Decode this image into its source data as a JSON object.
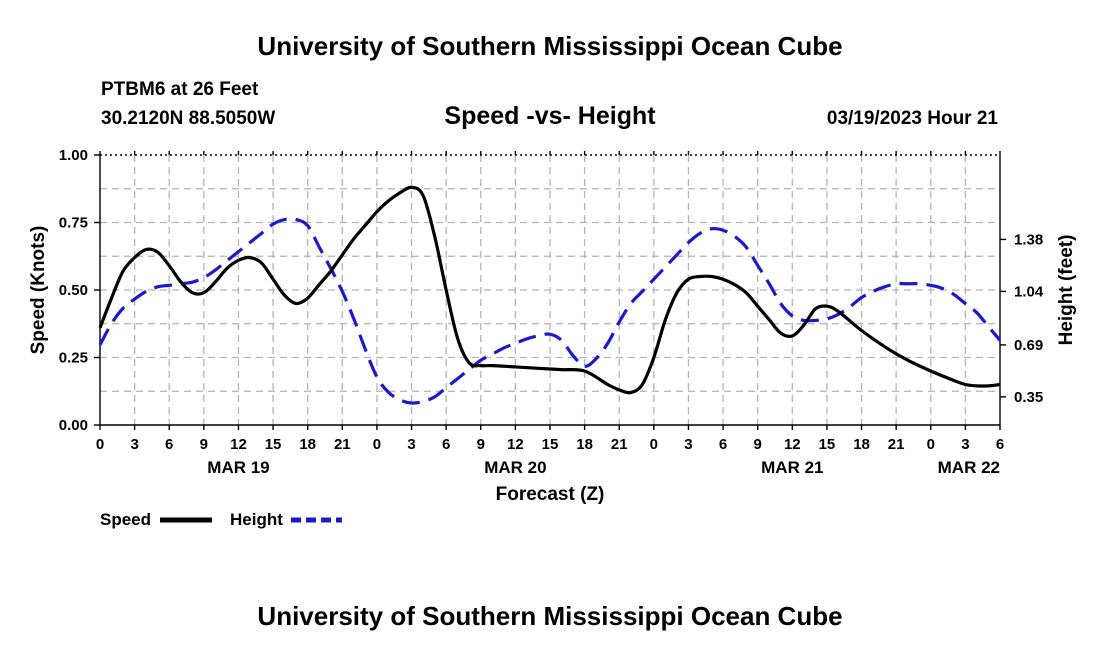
{
  "header": {
    "title": "University of Southern Mississippi Ocean Cube",
    "station": "PTBM6 at 26 Feet",
    "coords": "30.2120N  88.5050W",
    "chart_title": "Speed -vs- Height",
    "timestamp": "03/19/2023 Hour 21"
  },
  "footer": {
    "title": "University of Southern Mississippi Ocean Cube"
  },
  "colors": {
    "speed": "#000000",
    "height": "#1a1acc",
    "grid": "#b3b3b3"
  },
  "chart_data": {
    "type": "line",
    "title": "Speed -vs- Height",
    "xlabel": "Forecast (Z)",
    "ylabel": "Speed (Knots)",
    "y2label": "Height (feet)",
    "x_unit": "hours since MAR 19 00Z",
    "xlim": [
      0,
      78
    ],
    "ylim": [
      0,
      1
    ],
    "y2lim": [
      0.1661,
      1.9323
    ],
    "x_ticks": [
      0,
      3,
      6,
      9,
      12,
      15,
      18,
      21,
      24,
      27,
      30,
      33,
      36,
      39,
      42,
      45,
      48,
      51,
      54,
      57,
      60,
      63,
      66,
      69,
      72,
      75,
      78
    ],
    "x_tick_labels": [
      "0",
      "3",
      "6",
      "9",
      "12",
      "15",
      "18",
      "21",
      "0",
      "3",
      "6",
      "9",
      "12",
      "15",
      "18",
      "21",
      "0",
      "3",
      "6",
      "9",
      "12",
      "15",
      "18",
      "21",
      "0",
      "3",
      "6"
    ],
    "date_labels": [
      {
        "x": 12,
        "label": "MAR 19"
      },
      {
        "x": 36,
        "label": "MAR 20"
      },
      {
        "x": 60,
        "label": "MAR 21"
      },
      {
        "x": 84,
        "label": "MAR 22"
      }
    ],
    "y_ticks": [
      0,
      0.25,
      0.5,
      0.75,
      1
    ],
    "y_tick_labels": [
      "0.00",
      "0.25",
      "0.50",
      "0.75",
      "1.00"
    ],
    "y2_ticks": [
      0.35,
      0.69,
      1.04,
      1.38
    ],
    "y2_tick_labels": [
      "0.35",
      "0.69",
      "1.04",
      "1.38"
    ],
    "legend": [
      {
        "label": "Speed",
        "series": "speed"
      },
      {
        "label": "Height",
        "series": "height"
      }
    ],
    "series": [
      {
        "name": "Speed",
        "key": "speed",
        "axis": "left",
        "style": "solid",
        "x": [
          0,
          1,
          2,
          3,
          4,
          5,
          6,
          7,
          8,
          9,
          10,
          11,
          12,
          13,
          14,
          15,
          16,
          17,
          18,
          19,
          20,
          21,
          22,
          23,
          24,
          25,
          26,
          27,
          28,
          29,
          30,
          31,
          32,
          33,
          34,
          36,
          38,
          40,
          42,
          44,
          45,
          46,
          47,
          48,
          49,
          50,
          51,
          52,
          53,
          54,
          55,
          56,
          57,
          58,
          59,
          60,
          61,
          62,
          63,
          64,
          66,
          68,
          70,
          72,
          74,
          75,
          76,
          77,
          78
        ],
        "values": [
          0.36,
          0.47,
          0.57,
          0.62,
          0.65,
          0.64,
          0.59,
          0.53,
          0.49,
          0.49,
          0.53,
          0.58,
          0.61,
          0.62,
          0.6,
          0.54,
          0.48,
          0.45,
          0.47,
          0.52,
          0.57,
          0.63,
          0.69,
          0.74,
          0.79,
          0.83,
          0.86,
          0.88,
          0.85,
          0.7,
          0.5,
          0.32,
          0.23,
          0.22,
          0.22,
          0.215,
          0.21,
          0.205,
          0.2,
          0.15,
          0.13,
          0.12,
          0.15,
          0.25,
          0.39,
          0.49,
          0.54,
          0.55,
          0.55,
          0.54,
          0.52,
          0.49,
          0.44,
          0.39,
          0.34,
          0.33,
          0.37,
          0.43,
          0.44,
          0.42,
          0.35,
          0.29,
          0.24,
          0.2,
          0.165,
          0.15,
          0.145,
          0.145,
          0.15
        ]
      },
      {
        "name": "Height",
        "key": "height",
        "axis": "right",
        "style": "dashed",
        "x": [
          0,
          1,
          2,
          3,
          4,
          5,
          6,
          7,
          8,
          9,
          10,
          11,
          12,
          13,
          14,
          15,
          16,
          17,
          18,
          19,
          20,
          21,
          22,
          23,
          24,
          25,
          26,
          27,
          28,
          29,
          30,
          31,
          32,
          33,
          34,
          35,
          36,
          37,
          38,
          39,
          40,
          41,
          42,
          43,
          44,
          45,
          46,
          47,
          48,
          49,
          50,
          51,
          52,
          53,
          54,
          55,
          56,
          57,
          58,
          59,
          60,
          61,
          62,
          63,
          64,
          65,
          66,
          67,
          68,
          69,
          70,
          71,
          72,
          73,
          74,
          75,
          76,
          77,
          78
        ],
        "values": [
          0.69,
          0.83,
          0.93,
          0.99,
          1.04,
          1.07,
          1.08,
          1.09,
          1.1,
          1.13,
          1.18,
          1.24,
          1.3,
          1.36,
          1.42,
          1.48,
          1.51,
          1.51,
          1.47,
          1.33,
          1.19,
          1.04,
          0.86,
          0.66,
          0.48,
          0.38,
          0.33,
          0.31,
          0.32,
          0.35,
          0.41,
          0.47,
          0.53,
          0.59,
          0.63,
          0.67,
          0.7,
          0.73,
          0.75,
          0.76,
          0.72,
          0.62,
          0.55,
          0.6,
          0.7,
          0.84,
          0.96,
          1.04,
          1.12,
          1.2,
          1.28,
          1.36,
          1.42,
          1.45,
          1.44,
          1.4,
          1.33,
          1.21,
          1.09,
          0.96,
          0.88,
          0.85,
          0.85,
          0.86,
          0.89,
          0.94,
          1.0,
          1.04,
          1.07,
          1.09,
          1.09,
          1.09,
          1.08,
          1.06,
          1.02,
          0.96,
          0.9,
          0.81,
          0.72
        ]
      }
    ]
  }
}
